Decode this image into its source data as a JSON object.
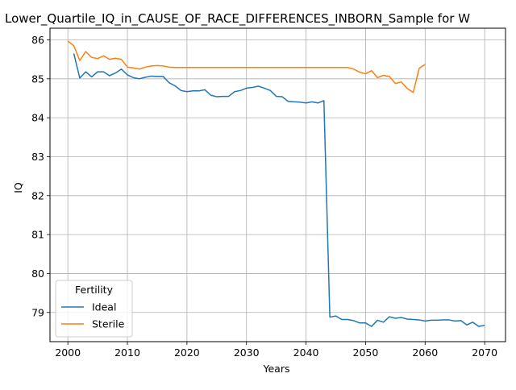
{
  "chart_data": {
    "type": "line",
    "title": "Lower_Quartile_IQ_in_CAUSE_OF_RACE_DIFFERENCES_INBORN_Sample for W",
    "xlabel": "Years",
    "ylabel": "IQ",
    "xlim": [
      1997,
      2073.5
    ],
    "ylim": [
      78.25,
      86.3
    ],
    "xticks": [
      2000,
      2010,
      2020,
      2030,
      2040,
      2050,
      2060,
      2070
    ],
    "yticks": [
      79,
      80,
      81,
      82,
      83,
      84,
      85,
      86
    ],
    "grid": true,
    "legend": {
      "title": "Fertility",
      "position": "lower-left"
    },
    "series": [
      {
        "name": "Ideal",
        "color": "#1f77b4",
        "x": [
          2001,
          2002,
          2003,
          2004,
          2005,
          2006,
          2007,
          2008,
          2009,
          2010,
          2011,
          2012,
          2013,
          2014,
          2015,
          2016,
          2017,
          2018,
          2019,
          2020,
          2021,
          2022,
          2023,
          2024,
          2025,
          2026,
          2027,
          2028,
          2029,
          2030,
          2031,
          2032,
          2033,
          2034,
          2035,
          2036,
          2037,
          2038,
          2039,
          2040,
          2041,
          2042,
          2043,
          2044,
          2045,
          2046,
          2047,
          2048,
          2049,
          2050,
          2051,
          2052,
          2053,
          2054,
          2055,
          2056,
          2057,
          2058,
          2059,
          2060,
          2061,
          2062,
          2063,
          2064,
          2065,
          2066,
          2067,
          2068,
          2069,
          2070
        ],
        "y": [
          85.65,
          85.02,
          85.18,
          85.05,
          85.18,
          85.18,
          85.08,
          85.15,
          85.25,
          85.1,
          85.03,
          85.0,
          85.04,
          85.07,
          85.06,
          85.06,
          84.9,
          84.82,
          84.7,
          84.67,
          84.69,
          84.69,
          84.72,
          84.58,
          84.54,
          84.55,
          84.55,
          84.67,
          84.7,
          84.76,
          84.78,
          84.81,
          84.76,
          84.7,
          84.55,
          84.54,
          84.42,
          84.41,
          84.4,
          84.38,
          84.41,
          84.38,
          84.44,
          78.88,
          78.91,
          78.82,
          78.82,
          78.79,
          78.73,
          78.73,
          78.64,
          78.8,
          78.75,
          78.89,
          78.85,
          78.87,
          78.83,
          78.82,
          78.81,
          78.78,
          78.8,
          78.8,
          78.81,
          78.81,
          78.78,
          78.79,
          78.68,
          78.75,
          78.64,
          78.67
        ]
      },
      {
        "name": "Sterile",
        "color": "#ff7f0e",
        "x": [
          2000,
          2001,
          2002,
          2003,
          2004,
          2005,
          2006,
          2007,
          2008,
          2009,
          2010,
          2011,
          2012,
          2013,
          2014,
          2015,
          2016,
          2017,
          2018,
          2019,
          2020,
          2021,
          2022,
          2023,
          2024,
          2025,
          2026,
          2027,
          2028,
          2029,
          2030,
          2031,
          2032,
          2033,
          2034,
          2035,
          2036,
          2037,
          2038,
          2039,
          2040,
          2041,
          2042,
          2043,
          2044,
          2045,
          2046,
          2047,
          2048,
          2049,
          2050,
          2051,
          2052,
          2053,
          2054,
          2055,
          2056,
          2057,
          2058,
          2059,
          2060
        ],
        "y": [
          85.97,
          85.85,
          85.47,
          85.7,
          85.55,
          85.52,
          85.59,
          85.5,
          85.53,
          85.5,
          85.3,
          85.28,
          85.25,
          85.3,
          85.33,
          85.34,
          85.33,
          85.3,
          85.29,
          85.29,
          85.29,
          85.29,
          85.29,
          85.29,
          85.29,
          85.29,
          85.29,
          85.29,
          85.29,
          85.29,
          85.29,
          85.29,
          85.29,
          85.29,
          85.29,
          85.29,
          85.29,
          85.29,
          85.29,
          85.29,
          85.29,
          85.29,
          85.29,
          85.29,
          85.29,
          85.29,
          85.29,
          85.29,
          85.25,
          85.17,
          85.13,
          85.21,
          85.03,
          85.09,
          85.06,
          84.88,
          84.92,
          84.75,
          84.65,
          85.27,
          85.37
        ]
      }
    ]
  }
}
